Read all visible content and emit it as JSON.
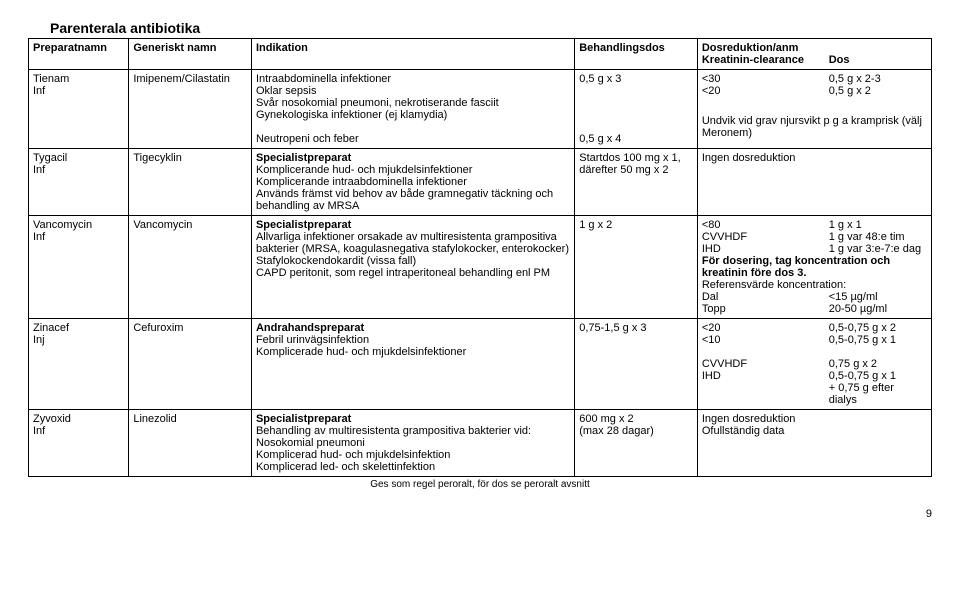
{
  "title": "Parenterala antibiotika",
  "headers": {
    "prep": "Preparatnamn",
    "gen": "Generiskt namn",
    "ind": "Indikation",
    "dose": "Behandlingsdos",
    "red": "Dosreduktion/anm",
    "red_sub_left": "Kreatinin-clearance",
    "red_sub_right": "Dos"
  },
  "rows": [
    {
      "prep": "Tienam\nInf",
      "gen": "Imipenem/Cilastatin",
      "ind": "Intraabdominella infektioner\nOklar sepsis\nSvår nosokomial pneumoni, nekrotiserande fasciit\nGynekologiska infektioner (ej klamydia)\n\nNeutropeni och feber",
      "dose": "0,5 g x 3\n\n\n\n\n0,5 g x 4",
      "red_left": "<30\n<20\n\n",
      "red_right": "0,5 g x 2-3\n0,5 g x 2\n\n",
      "red_full": "Undvik vid grav njursvikt p g a kramprisk (välj Meronem)"
    },
    {
      "prep": "Tygacil\nInf",
      "gen": "Tigecyklin",
      "ind_bold": "Specialistpreparat",
      "ind": "Komplicerande hud- och mjukdelsinfektioner\nKomplicerande intraabdominella infektioner\nAnvänds främst vid behov av både gramnegativ täckning och behandling av MRSA",
      "dose": "Startdos 100 mg x 1, därefter 50 mg x 2",
      "red_full": "Ingen dosreduktion"
    },
    {
      "prep": "Vancomycin\nInf",
      "gen": "Vancomycin",
      "ind_bold": "Specialistpreparat",
      "ind": "Allvarliga infektioner orsakade av multiresistenta grampositiva bakterier (MRSA, koagulasnegativa stafylokocker, enterokocker)\nStafylokockendokardit (vissa fall)\nCAPD peritonit, som regel intraperitoneal behandling enl PM",
      "dose": "1 g x 2",
      "red_left": "<80\nCVVHDF\nIHD",
      "red_right": "1 g x 1\n1 g var 48:e tim\n1 g var 3:e-7:e dag",
      "red_bold1": "För dosering, tag koncentration och kreatinin före dos 3.",
      "red_bold2_label": "Referensvärde koncentration:",
      "red_left2": "Dal\nTopp",
      "red_right2": "<15 µg/ml\n20-50 µg/ml"
    },
    {
      "prep": "Zinacef\nInj",
      "gen": "Cefuroxim",
      "ind_bold": "Andrahandspreparat",
      "ind": "Febril urinvägsinfektion\nKomplicerade hud- och mjukdelsinfektioner",
      "dose": "0,75-1,5 g x 3",
      "red_left": "<20\n<10\n\nCVVHDF\nIHD",
      "red_right": "0,5-0,75 g x 2\n0,5-0,75 g x 1\n\n0,75 g x 2\n0,5-0,75 g x 1\n+ 0,75 g efter dialys"
    },
    {
      "prep": "Zyvoxid\nInf",
      "gen": "Linezolid",
      "ind_bold": "Specialistpreparat",
      "ind": "Behandling av multiresistenta grampositiva bakterier vid:\nNosokomial pneumoni\nKomplicerad hud- och mjukdelsinfektion\nKomplicerad led- och skelettinfektion",
      "dose": "600 mg x 2\n(max 28 dagar)",
      "red_full": "Ingen dosreduktion\nOfullständig data"
    }
  ],
  "footer": "Ges som regel peroralt, för dos se peroralt avsnitt",
  "pagenum": "9"
}
